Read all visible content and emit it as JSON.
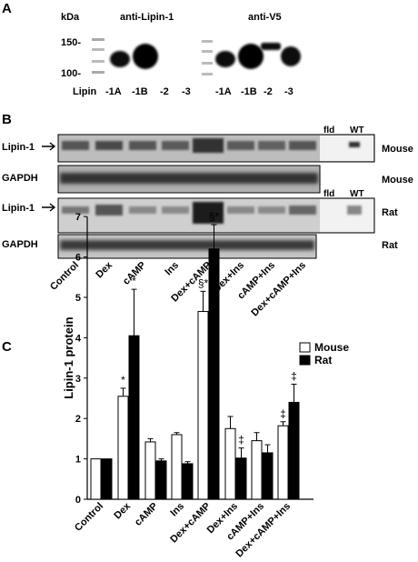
{
  "panel_a": {
    "letter": "A",
    "kda_label": "kDa",
    "antibody_labels": [
      "anti-Lipin-1",
      "anti-V5"
    ],
    "markers": [
      "150-",
      "100-"
    ],
    "row_prefix": "Lipin",
    "lanes_left": [
      "-1A",
      "-1B",
      "-2",
      "-3"
    ],
    "lanes_right": [
      "-1A",
      "-1B",
      "-2",
      "-3"
    ]
  },
  "panel_b": {
    "letter": "B",
    "blots": [
      {
        "label": "Lipin-1",
        "species": "Mouse",
        "controls": [
          "fld",
          "WT"
        ]
      },
      {
        "label": "GAPDH",
        "species": "Mouse"
      },
      {
        "label": "Lipin-1",
        "species": "Rat",
        "controls": [
          "fld",
          "WT"
        ]
      },
      {
        "label": "GAPDH",
        "species": "Rat"
      }
    ],
    "treatments": [
      "Control",
      "Dex",
      "cAMP",
      "Ins",
      "Dex+cAMP",
      "Dex+Ins",
      "cAMP+Ins",
      "Dex+cAMP+Ins"
    ]
  },
  "panel_c": {
    "letter": "C"
  },
  "chart_data": {
    "type": "bar",
    "title": "",
    "xlabel": "",
    "ylabel": "Lipin-1 protein",
    "ylim": [
      0,
      7
    ],
    "yticks": [
      "0",
      "1",
      "2",
      "3",
      "4",
      "5",
      "6",
      "7"
    ],
    "categories": [
      "Control",
      "Dex",
      "cAMP",
      "Ins",
      "Dex+cAMP",
      "Dex+Ins",
      "cAMP+Ins",
      "Dex+cAMP+Ins"
    ],
    "series": [
      {
        "name": "Mouse",
        "color": "#ffffff",
        "values": [
          1.0,
          2.55,
          1.42,
          1.6,
          4.65,
          1.75,
          1.45,
          1.82
        ],
        "errors": [
          0.0,
          0.2,
          0.08,
          0.05,
          0.5,
          0.3,
          0.2,
          0.1
        ],
        "annotations": [
          "",
          "*",
          "",
          "",
          "§*",
          "",
          "",
          "‡"
        ]
      },
      {
        "name": "Rat",
        "color": "#000000",
        "values": [
          1.0,
          4.05,
          0.95,
          0.88,
          6.2,
          1.02,
          1.15,
          2.4
        ],
        "errors": [
          0.0,
          1.15,
          0.05,
          0.05,
          0.6,
          0.25,
          0.2,
          0.45
        ],
        "annotations": [
          "",
          "*",
          "",
          "",
          "§*",
          "‡",
          "",
          "‡"
        ]
      }
    ],
    "legend": "top-right",
    "grid": false
  }
}
